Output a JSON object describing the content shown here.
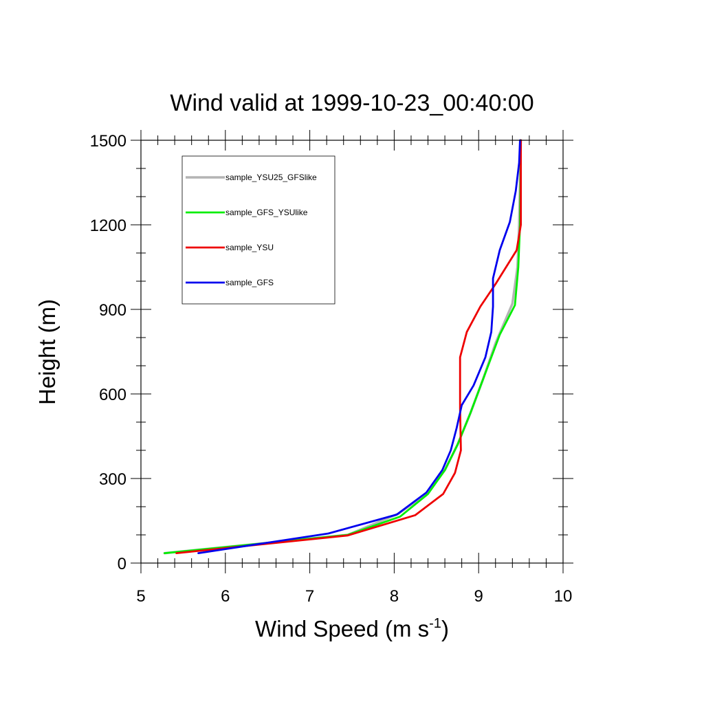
{
  "chart_data": {
    "type": "line",
    "title": "Wind valid at 1999-10-23_00:40:00",
    "xlabel_main": "Wind Speed (m s",
    "xlabel_sup": "-1",
    "xlabel_close": ")",
    "ylabel": "Height (m)",
    "xlim": [
      5,
      10
    ],
    "ylim": [
      0,
      1500
    ],
    "xticks": [
      5,
      6,
      7,
      8,
      9,
      10
    ],
    "yticks": [
      0,
      300,
      600,
      900,
      1200,
      1500
    ],
    "grid": false,
    "legend_position": "top-left",
    "series": [
      {
        "name": "sample_YSU25_GFSlike",
        "color": "#b4b4b4",
        "points": [
          [
            5.28,
            35
          ],
          [
            7.45,
            100
          ],
          [
            8.05,
            175
          ],
          [
            8.4,
            250
          ],
          [
            8.6,
            330
          ],
          [
            8.75,
            420
          ],
          [
            8.9,
            530
          ],
          [
            9.05,
            650
          ],
          [
            9.2,
            780
          ],
          [
            9.4,
            920
          ],
          [
            9.46,
            1050
          ],
          [
            9.48,
            1200
          ],
          [
            9.5,
            1500
          ]
        ]
      },
      {
        "name": "sample_GFS_YSUlike",
        "color": "#00ee00",
        "points": [
          [
            5.28,
            35
          ],
          [
            7.45,
            100
          ],
          [
            8.07,
            165
          ],
          [
            8.4,
            245
          ],
          [
            8.6,
            330
          ],
          [
            8.75,
            420
          ],
          [
            8.9,
            530
          ],
          [
            9.05,
            650
          ],
          [
            9.25,
            810
          ],
          [
            9.43,
            915
          ],
          [
            9.47,
            1050
          ],
          [
            9.49,
            1200
          ],
          [
            9.5,
            1500
          ]
        ]
      },
      {
        "name": "sample_YSU",
        "color": "#ee0000",
        "points": [
          [
            5.42,
            35
          ],
          [
            7.45,
            98
          ],
          [
            8.25,
            170
          ],
          [
            8.58,
            245
          ],
          [
            8.72,
            320
          ],
          [
            8.79,
            400
          ],
          [
            8.78,
            550
          ],
          [
            8.78,
            650
          ],
          [
            8.78,
            730
          ],
          [
            8.86,
            820
          ],
          [
            9.02,
            910
          ],
          [
            9.2,
            990
          ],
          [
            9.45,
            1110
          ],
          [
            9.5,
            1200
          ],
          [
            9.5,
            1500
          ]
        ]
      },
      {
        "name": "sample_GFS",
        "color": "#0000ee",
        "points": [
          [
            5.68,
            35
          ],
          [
            7.22,
            105
          ],
          [
            8.03,
            172
          ],
          [
            8.38,
            250
          ],
          [
            8.57,
            330
          ],
          [
            8.67,
            400
          ],
          [
            8.74,
            480
          ],
          [
            8.8,
            560
          ],
          [
            8.94,
            630
          ],
          [
            9.08,
            730
          ],
          [
            9.15,
            820
          ],
          [
            9.17,
            910
          ],
          [
            9.17,
            1010
          ],
          [
            9.25,
            1110
          ],
          [
            9.37,
            1210
          ],
          [
            9.44,
            1320
          ],
          [
            9.48,
            1420
          ],
          [
            9.49,
            1500
          ]
        ]
      }
    ]
  }
}
